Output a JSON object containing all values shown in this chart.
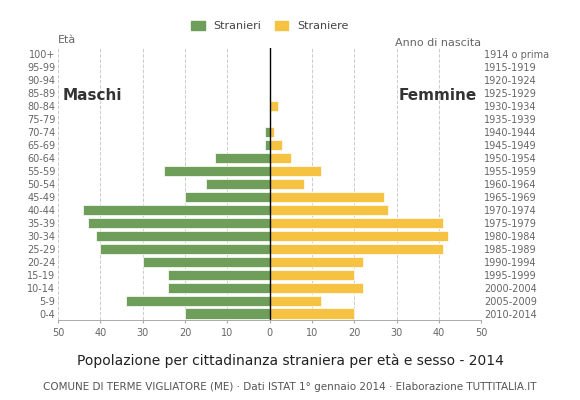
{
  "age_groups": [
    "0-4",
    "5-9",
    "10-14",
    "15-19",
    "20-24",
    "25-29",
    "30-34",
    "35-39",
    "40-44",
    "45-49",
    "50-54",
    "55-59",
    "60-64",
    "65-69",
    "70-74",
    "75-79",
    "80-84",
    "85-89",
    "90-94",
    "95-99",
    "100+"
  ],
  "birth_years": [
    "2010-2014",
    "2005-2009",
    "2000-2004",
    "1995-1999",
    "1990-1994",
    "1985-1989",
    "1980-1984",
    "1975-1979",
    "1970-1974",
    "1965-1969",
    "1960-1964",
    "1955-1959",
    "1950-1954",
    "1945-1949",
    "1940-1944",
    "1935-1939",
    "1930-1934",
    "1925-1929",
    "1920-1924",
    "1915-1919",
    "1914 o prima"
  ],
  "males": [
    20,
    34,
    24,
    24,
    30,
    40,
    41,
    43,
    44,
    20,
    15,
    25,
    13,
    1,
    1,
    0,
    0,
    0,
    0,
    0,
    0
  ],
  "females": [
    20,
    12,
    22,
    20,
    22,
    41,
    42,
    41,
    28,
    27,
    8,
    12,
    5,
    3,
    1,
    0,
    2,
    0,
    0,
    0,
    0
  ],
  "male_color": "#6f9e5a",
  "female_color": "#f5c242",
  "background_color": "#ffffff",
  "grid_color": "#cccccc",
  "title": "Popolazione per cittadinanza straniera per età e sesso - 2014",
  "subtitle": "COMUNE DI TERME VIGLIATORE (ME) · Dati ISTAT 1° gennaio 2014 · Elaborazione TUTTITALIA.IT",
  "legend_stranieri": "Stranieri",
  "legend_straniere": "Straniere",
  "xlabel_eta": "Età",
  "xlabel_anno": "Anno di nascita",
  "label_maschi": "Maschi",
  "label_femmine": "Femmine",
  "xlim": 50,
  "title_fontsize": 10,
  "subtitle_fontsize": 7.5,
  "tick_fontsize": 7,
  "label_fontsize": 8
}
